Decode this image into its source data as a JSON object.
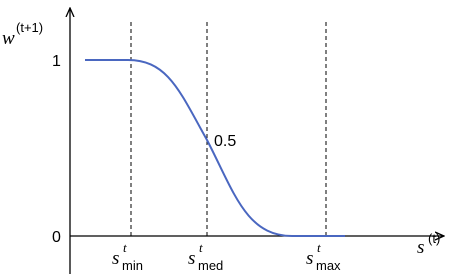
{
  "y_axis_label": {
    "base": "w",
    "sup": "(t+1)"
  },
  "x_axis_label": {
    "base": "s",
    "sup": "(t)"
  },
  "y_ticks": [
    "1",
    "0"
  ],
  "annotation": "0.5",
  "markers": [
    {
      "base": "s",
      "sup": "t",
      "sub": "min"
    },
    {
      "base": "s",
      "sup": "t",
      "sub": "med"
    },
    {
      "base": "s",
      "sup": "t",
      "sub": "max"
    }
  ]
}
